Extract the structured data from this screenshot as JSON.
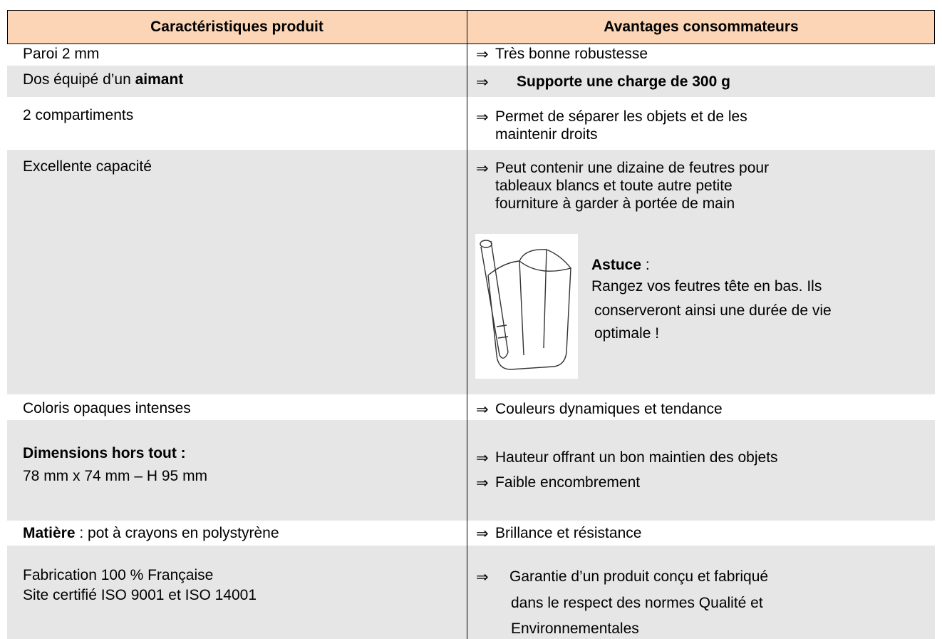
{
  "table": {
    "headers": [
      "Caractéristiques produit",
      "Avantages consommateurs"
    ],
    "bullet": "⇒",
    "rows": [
      {
        "left": [
          "Paroi 2 mm"
        ],
        "right": [
          [
            "Très bonne robustesse"
          ]
        ]
      },
      {
        "left": [
          "Dos équipé d’un ",
          "aimant"
        ],
        "right": [
          [
            "Supporte une charge de 300 g"
          ]
        ]
      },
      {
        "left": [
          "2 compartiments"
        ],
        "right": [
          [
            "Permet de séparer les objets et de les",
            "maintenir droits"
          ]
        ]
      },
      {
        "left": [
          "Excellente capacité"
        ],
        "right": [
          [
            "Peut contenir une dizaine de feutres pour",
            "tableaux blancs et toute autre petite",
            "fourniture à garder à portée de main"
          ]
        ],
        "tip": {
          "title": "Astuce",
          "suffix": " :",
          "lines": [
            "Rangez vos feutres tête en bas. Ils",
            "conserveront ainsi une durée de vie",
            "optimale !"
          ]
        }
      },
      {
        "left": [
          "Coloris opaques intenses"
        ],
        "right": [
          [
            "Couleurs dynamiques et tendance"
          ]
        ]
      },
      {
        "left": [
          "Dimensions hors tout :",
          "78 mm x 74 mm – H 95 mm"
        ],
        "right": [
          [
            "Hauteur offrant un bon maintien des objets"
          ],
          [
            "Faible encombrement"
          ]
        ]
      },
      {
        "left": [
          "Matière",
          " : pot à crayons en polystyrène"
        ],
        "right": [
          [
            "Brillance et résistance"
          ]
        ]
      },
      {
        "left": [
          "Fabrication 100 % Française",
          "Site certifié ISO 9001 et ISO 14001"
        ],
        "right": [
          [
            "Garantie d’un produit conçu et fabriqué",
            "dans le respect des normes Qualité et",
            "Environnementales"
          ]
        ]
      }
    ]
  }
}
